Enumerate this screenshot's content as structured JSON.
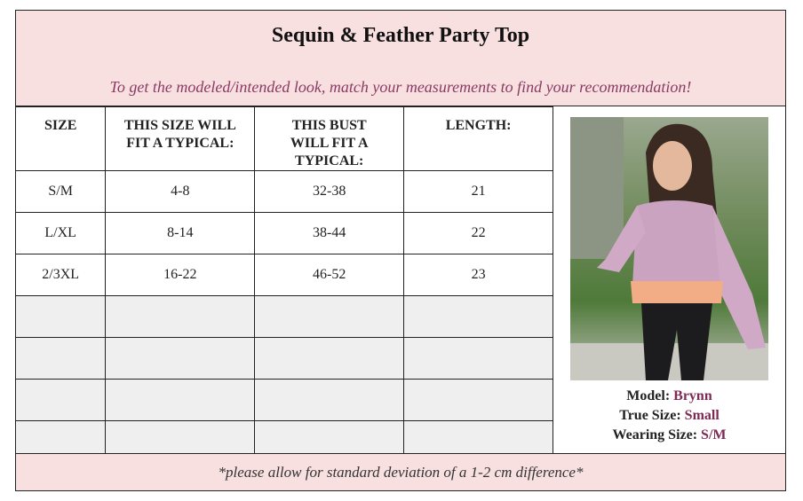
{
  "title": "Sequin & Feather Party Top",
  "subtitle": "To get the modeled/intended look, match your measurements to find your recommendation!",
  "columns": [
    "SIZE",
    "THIS SIZE WILL FIT A TYPICAL:",
    "THIS BUST WILL FIT A TYPICAL:",
    "LENGTH:"
  ],
  "rows": [
    [
      "S/M",
      "4-8",
      "32-38",
      "21"
    ],
    [
      "L/XL",
      "8-14",
      "38-44",
      "22"
    ],
    [
      "2/3XL",
      "16-22",
      "46-52",
      "23"
    ]
  ],
  "model": {
    "model_label": "Model:",
    "model_name": "Brynn",
    "true_label": "True Size:",
    "true_size": "Small",
    "wearing_label": "Wearing Size:",
    "wearing_size": "S/M"
  },
  "footer": "*please allow for standard deviation of a 1-2 cm difference*",
  "colors": {
    "header_bg": "#f8e0e1",
    "accent": "#7e2a55",
    "empty_row": "#efefef"
  }
}
